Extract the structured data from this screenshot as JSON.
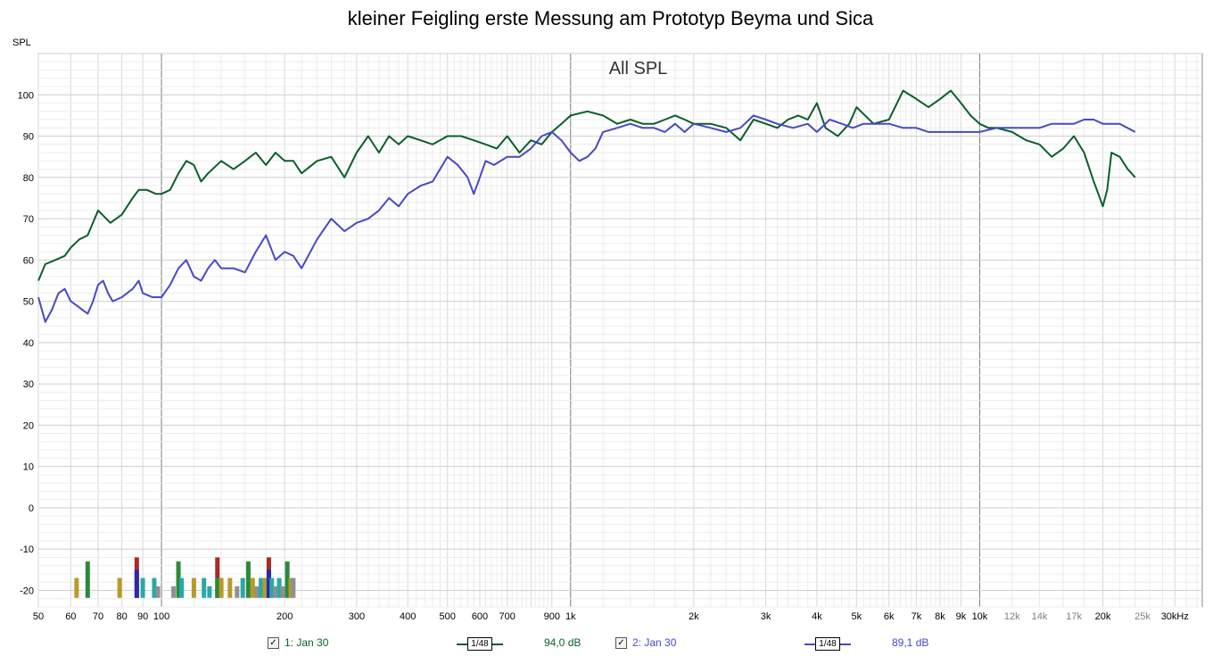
{
  "chart_data": {
    "type": "line",
    "title": "kleiner Feigling erste Messung am Prototyp Beyma und Sica",
    "plot_label": "All SPL",
    "ylabel": "SPL",
    "xscale": "log",
    "xlim": [
      50,
      35000
    ],
    "ylim": [
      -24,
      110
    ],
    "grid": true,
    "x_tick_labels": [
      {
        "f": 50,
        "label": "50"
      },
      {
        "f": 60,
        "label": "60"
      },
      {
        "f": 70,
        "label": "70"
      },
      {
        "f": 80,
        "label": "80"
      },
      {
        "f": 90,
        "label": "90"
      },
      {
        "f": 100,
        "label": "100"
      },
      {
        "f": 200,
        "label": "200"
      },
      {
        "f": 300,
        "label": "300"
      },
      {
        "f": 400,
        "label": "400"
      },
      {
        "f": 500,
        "label": "500"
      },
      {
        "f": 600,
        "label": "600"
      },
      {
        "f": 700,
        "label": "700"
      },
      {
        "f": 900,
        "label": "900"
      },
      {
        "f": 1000,
        "label": "1k"
      },
      {
        "f": 2000,
        "label": "2k"
      },
      {
        "f": 3000,
        "label": "3k"
      },
      {
        "f": 4000,
        "label": "4k"
      },
      {
        "f": 5000,
        "label": "5k"
      },
      {
        "f": 6000,
        "label": "6k"
      },
      {
        "f": 7000,
        "label": "7k"
      },
      {
        "f": 8000,
        "label": "8k"
      },
      {
        "f": 9000,
        "label": "9k"
      },
      {
        "f": 10000,
        "label": "10k"
      },
      {
        "f": 12000,
        "label": "12k"
      },
      {
        "f": 14000,
        "label": "14k"
      },
      {
        "f": 17000,
        "label": "17k"
      },
      {
        "f": 20000,
        "label": "20k"
      },
      {
        "f": 25000,
        "label": "25k"
      },
      {
        "f": 30000,
        "label": "30kHz"
      }
    ],
    "y_ticks": [
      100,
      90,
      80,
      70,
      60,
      50,
      40,
      30,
      20,
      10,
      0,
      -10,
      -20
    ],
    "series": [
      {
        "name": "1: Jan 30",
        "color": "#0b5e2c",
        "smoothing": "1/48",
        "level_label": "94,0 dB",
        "points": [
          [
            50,
            55
          ],
          [
            52,
            59
          ],
          [
            55,
            60
          ],
          [
            58,
            61
          ],
          [
            60,
            63
          ],
          [
            63,
            65
          ],
          [
            66,
            66
          ],
          [
            70,
            72
          ],
          [
            75,
            69
          ],
          [
            80,
            71
          ],
          [
            85,
            75
          ],
          [
            88,
            77
          ],
          [
            92,
            77
          ],
          [
            97,
            76
          ],
          [
            100,
            76
          ],
          [
            105,
            77
          ],
          [
            110,
            81
          ],
          [
            115,
            84
          ],
          [
            120,
            83
          ],
          [
            125,
            79
          ],
          [
            130,
            81
          ],
          [
            140,
            84
          ],
          [
            150,
            82
          ],
          [
            160,
            84
          ],
          [
            170,
            86
          ],
          [
            180,
            83
          ],
          [
            190,
            86
          ],
          [
            200,
            84
          ],
          [
            210,
            84
          ],
          [
            220,
            81
          ],
          [
            240,
            84
          ],
          [
            260,
            85
          ],
          [
            280,
            80
          ],
          [
            300,
            86
          ],
          [
            320,
            90
          ],
          [
            340,
            86
          ],
          [
            360,
            90
          ],
          [
            380,
            88
          ],
          [
            400,
            90
          ],
          [
            430,
            89
          ],
          [
            460,
            88
          ],
          [
            500,
            90
          ],
          [
            540,
            90
          ],
          [
            580,
            89
          ],
          [
            620,
            88
          ],
          [
            660,
            87
          ],
          [
            700,
            90
          ],
          [
            750,
            86
          ],
          [
            800,
            89
          ],
          [
            850,
            88
          ],
          [
            900,
            91
          ],
          [
            950,
            93
          ],
          [
            1000,
            95
          ],
          [
            1100,
            96
          ],
          [
            1200,
            95
          ],
          [
            1300,
            93
          ],
          [
            1400,
            94
          ],
          [
            1500,
            93
          ],
          [
            1600,
            93
          ],
          [
            1700,
            94
          ],
          [
            1800,
            95
          ],
          [
            1900,
            94
          ],
          [
            2000,
            93
          ],
          [
            2200,
            93
          ],
          [
            2400,
            92
          ],
          [
            2600,
            89
          ],
          [
            2800,
            94
          ],
          [
            3000,
            93
          ],
          [
            3200,
            92
          ],
          [
            3400,
            94
          ],
          [
            3600,
            95
          ],
          [
            3800,
            94
          ],
          [
            4000,
            98
          ],
          [
            4200,
            92
          ],
          [
            4500,
            90
          ],
          [
            4800,
            93
          ],
          [
            5000,
            97
          ],
          [
            5500,
            93
          ],
          [
            6000,
            94
          ],
          [
            6500,
            101
          ],
          [
            7000,
            99
          ],
          [
            7500,
            97
          ],
          [
            8000,
            99
          ],
          [
            8500,
            101
          ],
          [
            9000,
            98
          ],
          [
            9500,
            95
          ],
          [
            10000,
            93
          ],
          [
            10500,
            92
          ],
          [
            11000,
            92
          ],
          [
            12000,
            91
          ],
          [
            13000,
            89
          ],
          [
            14000,
            88
          ],
          [
            15000,
            85
          ],
          [
            16000,
            87
          ],
          [
            17000,
            90
          ],
          [
            18000,
            86
          ],
          [
            19000,
            79
          ],
          [
            19500,
            76
          ],
          [
            20000,
            73
          ],
          [
            20500,
            77
          ],
          [
            21000,
            86
          ],
          [
            22000,
            85
          ],
          [
            23000,
            82
          ],
          [
            24000,
            80
          ]
        ]
      },
      {
        "name": "2: Jan 30",
        "color": "#4848c8",
        "smoothing": "1/48",
        "level_label": "89,1 dB",
        "points": [
          [
            50,
            51
          ],
          [
            52,
            45
          ],
          [
            54,
            48
          ],
          [
            56,
            52
          ],
          [
            58,
            53
          ],
          [
            60,
            50
          ],
          [
            62,
            49
          ],
          [
            64,
            48
          ],
          [
            66,
            47
          ],
          [
            68,
            50
          ],
          [
            70,
            54
          ],
          [
            72,
            55
          ],
          [
            74,
            52
          ],
          [
            76,
            50
          ],
          [
            80,
            51
          ],
          [
            85,
            53
          ],
          [
            88,
            55
          ],
          [
            90,
            52
          ],
          [
            95,
            51
          ],
          [
            100,
            51
          ],
          [
            105,
            54
          ],
          [
            110,
            58
          ],
          [
            115,
            60
          ],
          [
            120,
            56
          ],
          [
            125,
            55
          ],
          [
            130,
            58
          ],
          [
            135,
            60
          ],
          [
            140,
            58
          ],
          [
            150,
            58
          ],
          [
            160,
            57
          ],
          [
            170,
            62
          ],
          [
            180,
            66
          ],
          [
            185,
            63
          ],
          [
            190,
            60
          ],
          [
            200,
            62
          ],
          [
            210,
            61
          ],
          [
            220,
            58
          ],
          [
            240,
            65
          ],
          [
            260,
            70
          ],
          [
            280,
            67
          ],
          [
            300,
            69
          ],
          [
            320,
            70
          ],
          [
            340,
            72
          ],
          [
            360,
            75
          ],
          [
            380,
            73
          ],
          [
            400,
            76
          ],
          [
            430,
            78
          ],
          [
            460,
            79
          ],
          [
            500,
            85
          ],
          [
            530,
            83
          ],
          [
            560,
            80
          ],
          [
            580,
            76
          ],
          [
            600,
            80
          ],
          [
            620,
            84
          ],
          [
            650,
            83
          ],
          [
            700,
            85
          ],
          [
            750,
            85
          ],
          [
            800,
            87
          ],
          [
            850,
            90
          ],
          [
            900,
            91
          ],
          [
            950,
            89
          ],
          [
            1000,
            86
          ],
          [
            1050,
            84
          ],
          [
            1100,
            85
          ],
          [
            1150,
            87
          ],
          [
            1200,
            91
          ],
          [
            1300,
            92
          ],
          [
            1400,
            93
          ],
          [
            1500,
            92
          ],
          [
            1600,
            92
          ],
          [
            1700,
            91
          ],
          [
            1800,
            93
          ],
          [
            1900,
            91
          ],
          [
            2000,
            93
          ],
          [
            2200,
            92
          ],
          [
            2400,
            91
          ],
          [
            2600,
            92
          ],
          [
            2800,
            95
          ],
          [
            3000,
            94
          ],
          [
            3200,
            93
          ],
          [
            3500,
            92
          ],
          [
            3800,
            93
          ],
          [
            4000,
            91
          ],
          [
            4300,
            94
          ],
          [
            4600,
            93
          ],
          [
            4900,
            92
          ],
          [
            5200,
            93
          ],
          [
            5500,
            93
          ],
          [
            6000,
            93
          ],
          [
            6500,
            92
          ],
          [
            7000,
            92
          ],
          [
            7500,
            91
          ],
          [
            8000,
            91
          ],
          [
            9000,
            91
          ],
          [
            10000,
            91
          ],
          [
            11000,
            92
          ],
          [
            12000,
            92
          ],
          [
            13000,
            92
          ],
          [
            14000,
            92
          ],
          [
            15000,
            93
          ],
          [
            16000,
            93
          ],
          [
            17000,
            93
          ],
          [
            18000,
            94
          ],
          [
            19000,
            94
          ],
          [
            20000,
            93
          ],
          [
            21000,
            93
          ],
          [
            22000,
            93
          ],
          [
            24000,
            91
          ]
        ]
      }
    ],
    "bar_series": [
      {
        "f": 62,
        "v": -17,
        "color": "#b89a2a"
      },
      {
        "f": 66,
        "v": -13,
        "color": "#2a8a3a"
      },
      {
        "f": 79,
        "v": -17,
        "color": "#b89a2a"
      },
      {
        "f": 87,
        "v": -12,
        "color": "#a82a2a"
      },
      {
        "f": 87,
        "v": -15,
        "color": "#2a2aa8"
      },
      {
        "f": 90,
        "v": -17,
        "color": "#2aa8a8"
      },
      {
        "f": 96,
        "v": -17,
        "color": "#2aa8a8"
      },
      {
        "f": 98,
        "v": -19,
        "color": "#909090"
      },
      {
        "f": 107,
        "v": -19,
        "color": "#909090"
      },
      {
        "f": 110,
        "v": -13,
        "color": "#2a8a3a"
      },
      {
        "f": 112,
        "v": -17,
        "color": "#2aa8a8"
      },
      {
        "f": 120,
        "v": -17,
        "color": "#b89a2a"
      },
      {
        "f": 127,
        "v": -17,
        "color": "#2aa8a8"
      },
      {
        "f": 131,
        "v": -19,
        "color": "#2aa8a8"
      },
      {
        "f": 137,
        "v": -12,
        "color": "#a82a2a"
      },
      {
        "f": 137,
        "v": -17,
        "color": "#2a8a3a"
      },
      {
        "f": 140,
        "v": -17,
        "color": "#b89a2a"
      },
      {
        "f": 147,
        "v": -17,
        "color": "#b89a2a"
      },
      {
        "f": 153,
        "v": -19,
        "color": "#909090"
      },
      {
        "f": 158,
        "v": -17,
        "color": "#2aa8a8"
      },
      {
        "f": 163,
        "v": -13,
        "color": "#2a8a3a"
      },
      {
        "f": 167,
        "v": -17,
        "color": "#b89a2a"
      },
      {
        "f": 171,
        "v": -19,
        "color": "#909090"
      },
      {
        "f": 175,
        "v": -17,
        "color": "#2aa8a8"
      },
      {
        "f": 179,
        "v": -17,
        "color": "#b89a2a"
      },
      {
        "f": 183,
        "v": -12,
        "color": "#a82a2a"
      },
      {
        "f": 183,
        "v": -15,
        "color": "#2a2aa8"
      },
      {
        "f": 186,
        "v": -17,
        "color": "#2aa8a8"
      },
      {
        "f": 190,
        "v": -19,
        "color": "#909090"
      },
      {
        "f": 194,
        "v": -17,
        "color": "#2aa8a8"
      },
      {
        "f": 198,
        "v": -19,
        "color": "#909090"
      },
      {
        "f": 203,
        "v": -13,
        "color": "#2a8a3a"
      },
      {
        "f": 207,
        "v": -17,
        "color": "#b89a2a"
      },
      {
        "f": 210,
        "v": -17,
        "color": "#909090"
      }
    ]
  },
  "legend": {
    "item1": {
      "check": "✓",
      "label": "1: Jan 30",
      "smoothing": "1/48",
      "level": "94,0 dB"
    },
    "item2": {
      "check": "✓",
      "label": "2: Jan 30",
      "smoothing": "1/48",
      "level": "89,1 dB"
    }
  }
}
